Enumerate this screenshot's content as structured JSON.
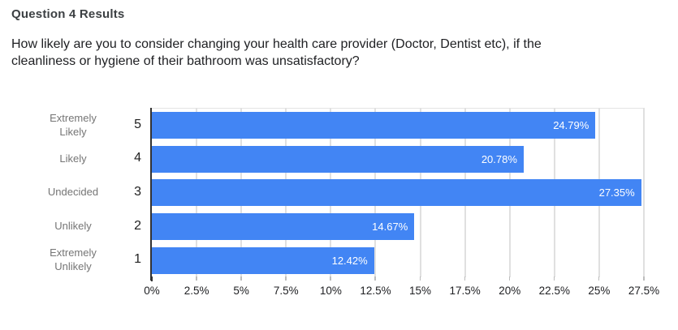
{
  "header": {
    "title": "Question 4 Results",
    "question": "How likely are you to consider changing your health care provider (Doctor, Dentist etc), if the cleanliness or hygiene of their bathroom was unsatisfactory?"
  },
  "chart_data": {
    "type": "bar",
    "orientation": "horizontal",
    "title": "Question 4 Results",
    "categories": [
      "Extremely Likely",
      "Likely",
      "Undecided",
      "Unlikely",
      "Extremely Unlikely"
    ],
    "scale_values": [
      "5",
      "4",
      "3",
      "2",
      "1"
    ],
    "values": [
      24.79,
      20.78,
      27.35,
      14.67,
      12.42
    ],
    "value_labels": [
      "24.79%",
      "20.78%",
      "27.35%",
      "14.67%",
      "12.42%"
    ],
    "x_ticks": [
      "0%",
      "2.5%",
      "5%",
      "7.5%",
      "10%",
      "12.5%",
      "15%",
      "17.5%",
      "20%",
      "22.5%",
      "25%",
      "27.5%"
    ],
    "xlim": [
      0,
      27.5
    ],
    "grid": true,
    "legend": "none",
    "colors": {
      "bar": "#4285f4",
      "value_label": "#ffffff",
      "gridline": "#e0e0e0",
      "axis_line": "#333333",
      "category_label": "#757575",
      "tick_label": "#202124"
    }
  }
}
